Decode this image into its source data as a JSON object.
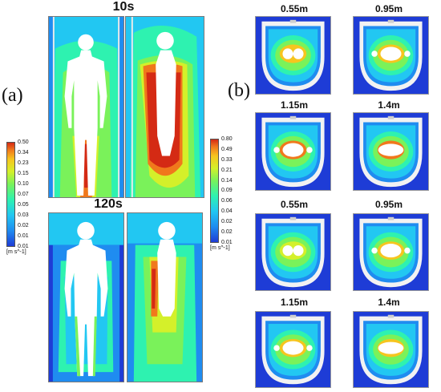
{
  "figure": {
    "panel_a_label": "(a)",
    "panel_b_label": "(b)",
    "time_10": "10s",
    "time_120": "120s",
    "heights_top": [
      "0.55m",
      "0.95m",
      "1.15m",
      "1.4m"
    ],
    "heights_bottom": [
      "0.55m",
      "0.95m",
      "1.15m",
      "1.4m"
    ]
  },
  "colorbar_left": {
    "ticks": [
      "0.50",
      "0.34",
      "0.23",
      "0.15",
      "0.10",
      "0.07",
      "0.05",
      "0.03",
      "0.02",
      "0.01",
      "0.01"
    ],
    "unit": "[m s^-1]"
  },
  "colorbar_right": {
    "ticks": [
      "0.80",
      "0.49",
      "0.33",
      "0.21",
      "0.14",
      "0.09",
      "0.06",
      "0.04",
      "0.02",
      "0.02",
      "0.01"
    ],
    "unit": "[m s^-1]"
  },
  "colors": {
    "scale": [
      "#1e3cd6",
      "#1f8cf0",
      "#22c7f2",
      "#2ef2b0",
      "#7af25a",
      "#d4f02a",
      "#f6c51e",
      "#f0781c",
      "#d42a14"
    ]
  }
}
